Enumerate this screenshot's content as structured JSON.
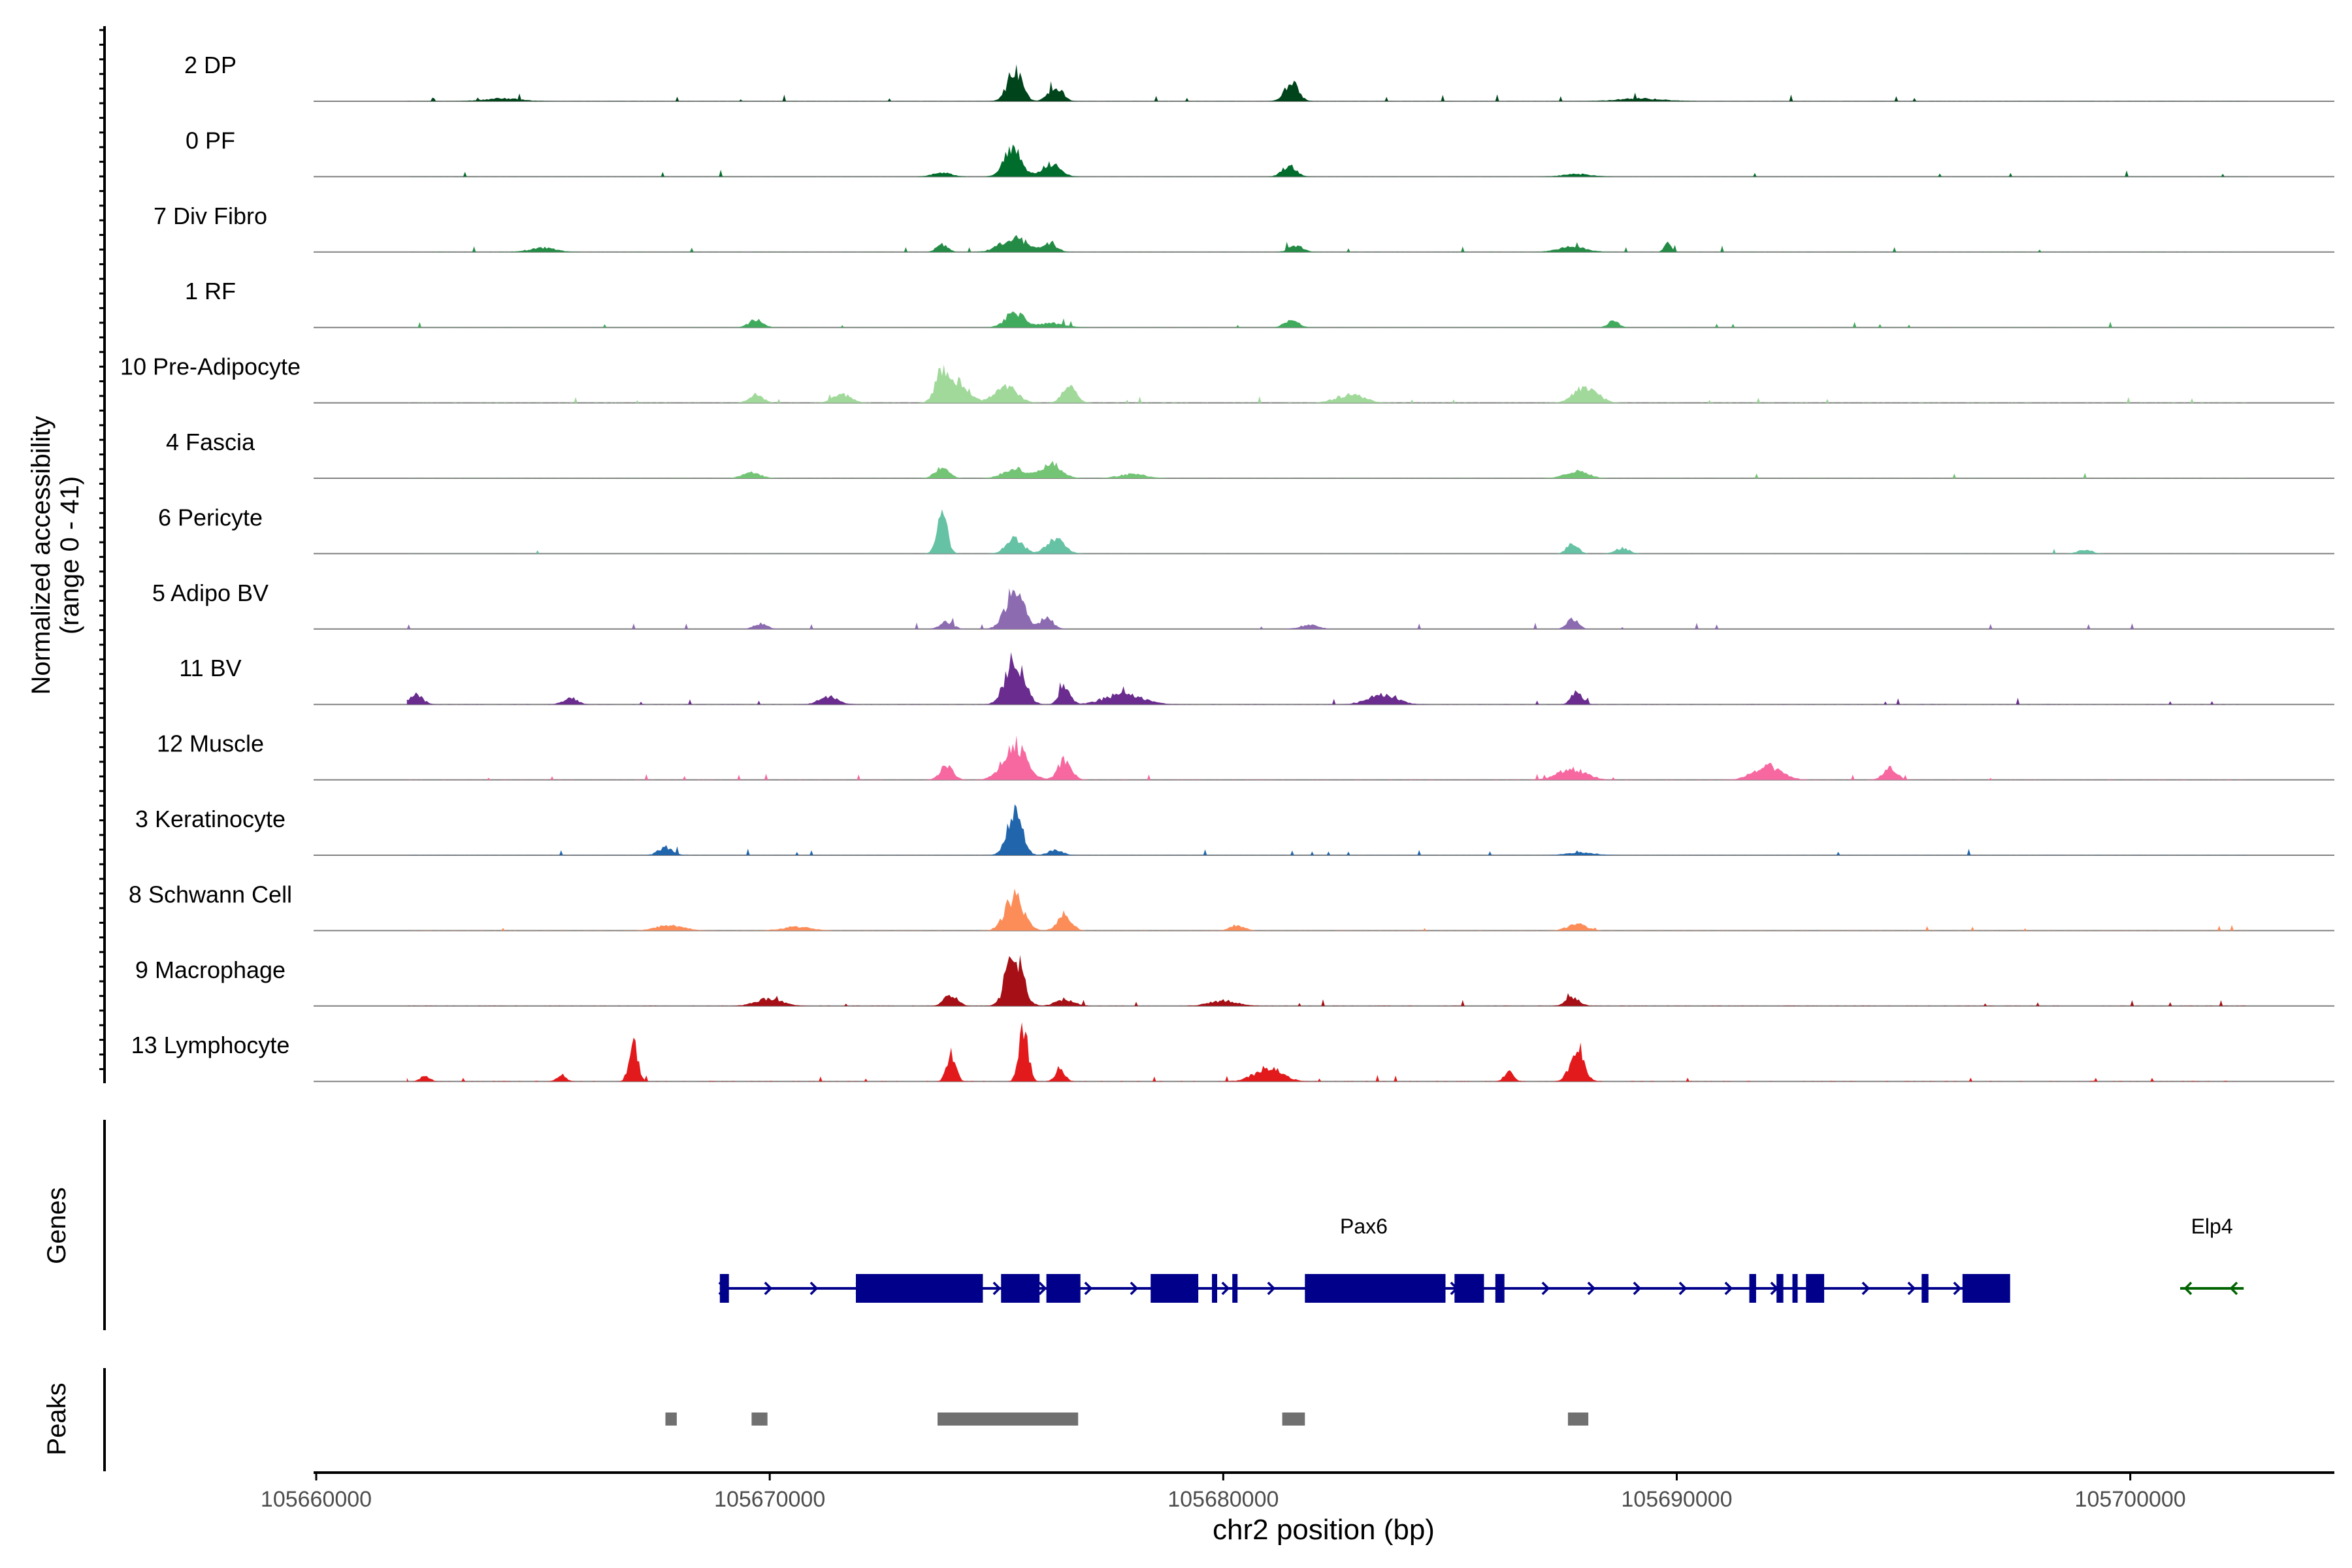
{
  "chart_data": {
    "type": "area",
    "title": "",
    "xlabel": "chr2 position (bp)",
    "ylabel": "Normalized accessibility",
    "ylabel_range": "(range 0 - 41)",
    "ylim": [
      0,
      41
    ],
    "xlim": [
      105660000,
      105704500
    ],
    "x_ticks": [
      105660000,
      105670000,
      105680000,
      105690000,
      105700000
    ],
    "x_tick_labels": [
      "105660000",
      "105670000",
      "105680000",
      "105690000",
      "105700000"
    ],
    "tracks": [
      {
        "name": "2 DP",
        "color": "#00441b",
        "sparsity": 0.05,
        "bg": 0.05,
        "peaks": [
          [
            105675400,
            22,
            160
          ],
          [
            105676300,
            11,
            150
          ],
          [
            105681500,
            14,
            150
          ],
          [
            105664100,
            2,
            400
          ],
          [
            105689200,
            2,
            500
          ]
        ]
      },
      {
        "name": "0 PF",
        "color": "#006d2c",
        "sparsity": 0.05,
        "bg": 0.04,
        "peaks": [
          [
            105675350,
            20,
            190
          ],
          [
            105676200,
            9,
            200
          ],
          [
            105681450,
            8,
            150
          ],
          [
            105673800,
            3,
            200
          ],
          [
            105687800,
            2,
            300
          ]
        ]
      },
      {
        "name": "7 Div Fibro",
        "color": "#238b45",
        "sparsity": 0.45,
        "bg": 0.08,
        "peaks": [
          [
            105675400,
            10,
            300
          ],
          [
            105676200,
            6,
            150
          ],
          [
            105673800,
            6,
            120
          ],
          [
            105689800,
            6,
            80
          ],
          [
            105681600,
            5,
            150
          ],
          [
            105687700,
            4,
            300
          ],
          [
            105665000,
            3,
            300
          ]
        ]
      },
      {
        "name": "1 RF",
        "color": "#41ab5d",
        "sparsity": 0.1,
        "bg": 0.05,
        "peaks": [
          [
            105675400,
            11,
            200
          ],
          [
            105681500,
            6,
            150
          ],
          [
            105669700,
            6,
            150
          ],
          [
            105688600,
            5,
            120
          ],
          [
            105676200,
            3,
            300
          ]
        ]
      },
      {
        "name": "10 Pre-Adipocyte",
        "color": "#a1d99b",
        "sparsity": 0.6,
        "bg": 0.12,
        "peaks": [
          [
            105673800,
            22,
            150
          ],
          [
            105674200,
            14,
            200
          ],
          [
            105675200,
            12,
            250
          ],
          [
            105676600,
            12,
            150
          ],
          [
            105688000,
            12,
            250
          ],
          [
            105682800,
            6,
            300
          ],
          [
            105669700,
            6,
            150
          ],
          [
            105671600,
            6,
            200
          ]
        ]
      },
      {
        "name": "4 Fascia",
        "color": "#74c476",
        "sparsity": 0.15,
        "bg": 0.06,
        "peaks": [
          [
            105676200,
            11,
            220
          ],
          [
            105673800,
            8,
            150
          ],
          [
            105675400,
            7,
            250
          ],
          [
            105687800,
            5,
            250
          ],
          [
            105669600,
            4,
            200
          ],
          [
            105678000,
            3,
            300
          ]
        ]
      },
      {
        "name": "6 Pericyte",
        "color": "#66c2a4",
        "sparsity": 0.15,
        "bg": 0.05,
        "peaks": [
          [
            105673800,
            32,
            110
          ],
          [
            105675400,
            12,
            180
          ],
          [
            105676300,
            10,
            200
          ],
          [
            105687700,
            8,
            120
          ],
          [
            105688800,
            4,
            150
          ],
          [
            105699000,
            3,
            150
          ]
        ]
      },
      {
        "name": "5 Adipo BV",
        "color": "#8c6bb1",
        "sparsity": 0.2,
        "bg": 0.05,
        "peaks": [
          [
            105675400,
            28,
            200
          ],
          [
            105676100,
            8,
            150
          ],
          [
            105673900,
            5,
            150
          ],
          [
            105687700,
            8,
            120
          ],
          [
            105669800,
            4,
            150
          ],
          [
            105681900,
            3,
            200
          ]
        ]
      },
      {
        "name": "11 BV",
        "color": "#6a2c8e",
        "sparsity": 0.6,
        "bg": 0.08,
        "peaks": [
          [
            105675400,
            34,
            200
          ],
          [
            105676500,
            14,
            120
          ],
          [
            105677800,
            8,
            400
          ],
          [
            105683500,
            8,
            300
          ],
          [
            105687800,
            10,
            120
          ],
          [
            105662200,
            7,
            150
          ],
          [
            105665600,
            5,
            150
          ],
          [
            105671300,
            6,
            200
          ]
        ]
      },
      {
        "name": "12 Muscle",
        "color": "#f768a1",
        "sparsity": 0.6,
        "bg": 0.1,
        "peaks": [
          [
            105675400,
            26,
            250
          ],
          [
            105676500,
            14,
            150
          ],
          [
            105673900,
            10,
            150
          ],
          [
            105687700,
            8,
            300
          ],
          [
            105692000,
            10,
            300
          ],
          [
            105694700,
            8,
            150
          ]
        ]
      },
      {
        "name": "3 Keratinocyte",
        "color": "#2166ac",
        "sparsity": 0.05,
        "bg": 0.05,
        "peaks": [
          [
            105675400,
            33,
            160
          ],
          [
            105667700,
            6,
            150
          ],
          [
            105676300,
            4,
            150
          ],
          [
            105687900,
            2,
            300
          ]
        ]
      },
      {
        "name": "8 Schwann Cell",
        "color": "#fc8d59",
        "sparsity": 0.25,
        "bg": 0.08,
        "peaks": [
          [
            105675400,
            26,
            200
          ],
          [
            105676500,
            12,
            150
          ],
          [
            105687800,
            5,
            200
          ],
          [
            105680300,
            4,
            150
          ],
          [
            105667800,
            4,
            300
          ],
          [
            105670600,
            3,
            300
          ]
        ]
      },
      {
        "name": "9 Macrophage",
        "color": "#a50f15",
        "sparsity": 0.55,
        "bg": 0.1,
        "peaks": [
          [
            105675400,
            38,
            180
          ],
          [
            105674000,
            8,
            150
          ],
          [
            105676500,
            5,
            200
          ],
          [
            105687700,
            6,
            150
          ],
          [
            105670000,
            5,
            300
          ],
          [
            105680000,
            4,
            300
          ]
        ]
      },
      {
        "name": "13 Lymphocyte",
        "color": "#e31a1c",
        "sparsity": 0.8,
        "bg": 0.15,
        "peaks": [
          [
            105675600,
            40,
            100
          ],
          [
            105667000,
            26,
            100
          ],
          [
            105674000,
            20,
            100
          ],
          [
            105687800,
            24,
            150
          ],
          [
            105676400,
            10,
            100
          ],
          [
            105665400,
            5,
            100
          ],
          [
            105681000,
            10,
            300
          ],
          [
            105686300,
            8,
            100
          ],
          [
            105662400,
            4,
            100
          ]
        ]
      }
    ],
    "genes": {
      "label": "Genes",
      "items": [
        {
          "name": "Pax6",
          "strand": "+",
          "color": "#00008b",
          "start": 105668900,
          "end": 105697300,
          "exons": [
            [
              105668900,
              105669100
            ],
            [
              105671900,
              105674700
            ],
            [
              105675100,
              105675950
            ],
            [
              105676100,
              105676850
            ],
            [
              105678400,
              105679450
            ],
            [
              105679750,
              105679850
            ],
            [
              105680200,
              105680300
            ],
            [
              105681800,
              105684900
            ],
            [
              105685100,
              105685750
            ],
            [
              105686000,
              105686200
            ],
            [
              105691600,
              105691750
            ],
            [
              105692200,
              105692350
            ],
            [
              105692550,
              105692650
            ],
            [
              105692850,
              105693250
            ],
            [
              105695400,
              105695550
            ],
            [
              105696300,
              105697350
            ]
          ]
        },
        {
          "name": "Elp4",
          "strand": "-",
          "color": "#006400",
          "start": 105701100,
          "end": 105702500,
          "exons": []
        }
      ]
    },
    "peaks_track": {
      "label": "Peaks",
      "color": "#707070",
      "regions": [
        [
          105667700,
          105667950
        ],
        [
          105669600,
          105669950
        ],
        [
          105673700,
          105676800
        ],
        [
          105681300,
          105681800
        ],
        [
          105687600,
          105688050
        ]
      ]
    }
  }
}
